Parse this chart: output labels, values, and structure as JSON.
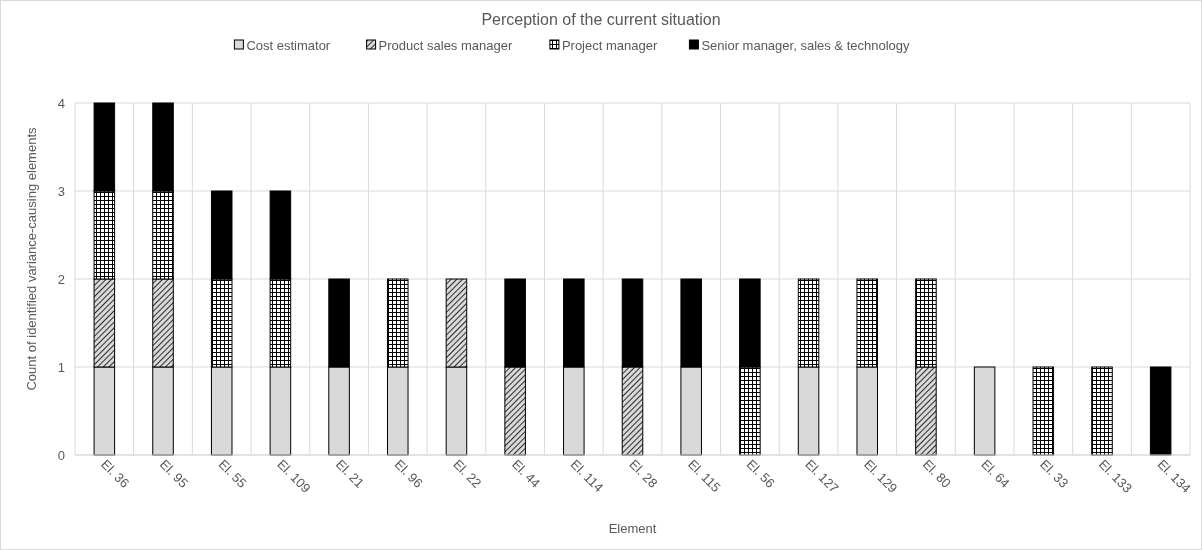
{
  "chart_data": {
    "type": "bar",
    "title": "Perception of the current situation",
    "xlabel": "Element",
    "ylabel": "Count of identified variance-causing elements",
    "categories": [
      "El. 36",
      "El. 95",
      "El. 55",
      "El. 109",
      "El. 21",
      "El. 96",
      "El. 22",
      "El. 44",
      "El. 114",
      "El. 28",
      "El. 115",
      "El. 56",
      "El. 127",
      "El. 129",
      "El. 80",
      "El. 64",
      "El. 33",
      "El. 133",
      "El. 134"
    ],
    "series": [
      {
        "name": "Cost estimator",
        "color": "#d9d9d9",
        "values": [
          1,
          1,
          1,
          1,
          1,
          1,
          1,
          0,
          1,
          0,
          1,
          0,
          1,
          1,
          0,
          1,
          0,
          0,
          0
        ]
      },
      {
        "name": "Product sales manager",
        "color": "#000000",
        "values": [
          1,
          1,
          0,
          0,
          0,
          0,
          1,
          1,
          0,
          1,
          0,
          0,
          0,
          0,
          1,
          0,
          0,
          0,
          0
        ]
      },
      {
        "name": "Project manager",
        "color": "#000000",
        "values": [
          1,
          1,
          1,
          1,
          0,
          1,
          0,
          0,
          0,
          0,
          0,
          1,
          1,
          1,
          1,
          0,
          1,
          1,
          0
        ]
      },
      {
        "name": "Senior manager, sales & technology",
        "color": "#000000",
        "values": [
          1,
          1,
          1,
          1,
          1,
          0,
          0,
          1,
          1,
          1,
          1,
          1,
          0,
          0,
          0,
          0,
          0,
          0,
          1
        ]
      }
    ],
    "stacked": true,
    "ylim": [
      0,
      4
    ],
    "yticks": [
      0,
      1,
      2,
      3,
      4
    ],
    "grid": true,
    "legend": "top"
  }
}
